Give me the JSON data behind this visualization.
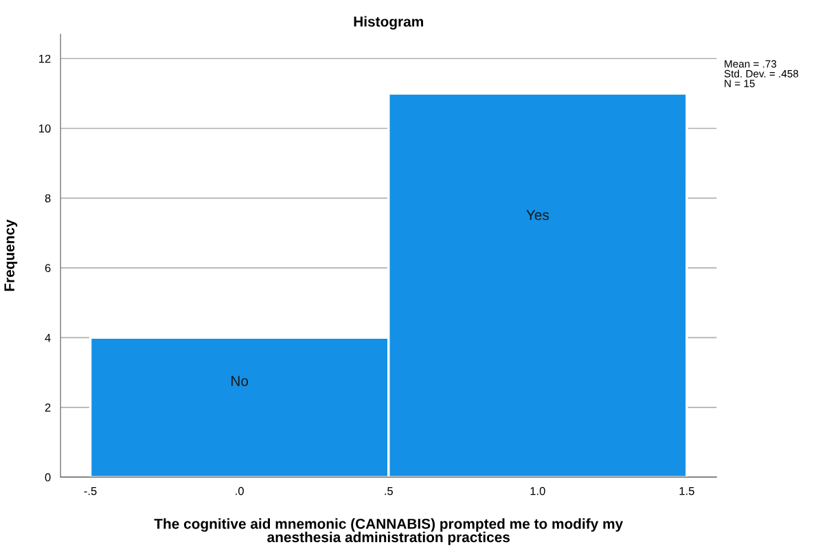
{
  "chart_data": {
    "type": "histogram",
    "title": "Histogram",
    "xlabel": "The cognitive aid mnemonic (CANNABIS) prompted me to modify my\nanesthesia administration practices",
    "ylabel": "Frequency",
    "bins": [
      -0.5,
      0.5,
      1.5
    ],
    "values": [
      4,
      11
    ],
    "color": "#1490e6",
    "xlim": [
      -0.6,
      1.6
    ],
    "ylim": [
      0,
      12.7
    ],
    "xticks": [
      {
        "value": -0.5,
        "label": "-.5"
      },
      {
        "value": 0,
        "label": ".0"
      },
      {
        "value": 0.5,
        "label": ".5"
      },
      {
        "value": 1.0,
        "label": "1.0"
      },
      {
        "value": 1.5,
        "label": "1.5"
      }
    ],
    "yticks": [
      0,
      2,
      4,
      6,
      8,
      10,
      12
    ],
    "grid": "y",
    "annotations": [
      "No",
      "Yes",
      "Mean = .73\nStd. Dev. = .458\nN = 15"
    ]
  }
}
